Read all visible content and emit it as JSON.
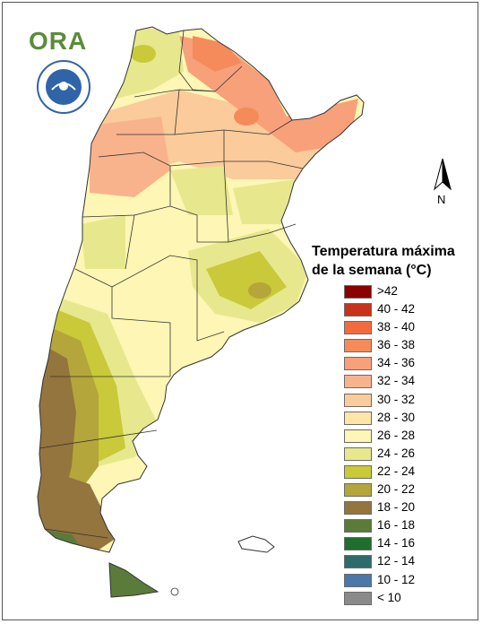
{
  "logo": {
    "text": "ORA",
    "brand_color": "#5a8c3a"
  },
  "seal": {
    "icon": "smn-seal-icon",
    "color": "#2f64a8"
  },
  "north_arrow": {
    "label": "N",
    "icon": "north-arrow-icon"
  },
  "legend": {
    "title_line1": "Temperatura máxima",
    "title_line2": "de la semana (°C)",
    "items": [
      {
        "label": ">42",
        "color": "#8b0000"
      },
      {
        "label": "40 - 42",
        "color": "#c8331b"
      },
      {
        "label": "38 - 40",
        "color": "#f26a3e"
      },
      {
        "label": "36 - 38",
        "color": "#f58a5a"
      },
      {
        "label": "34 - 36",
        "color": "#f7a07a"
      },
      {
        "label": "32 - 34",
        "color": "#f8b38d"
      },
      {
        "label": "30 - 32",
        "color": "#fbcb9b"
      },
      {
        "label": "28 - 30",
        "color": "#fde6a8"
      },
      {
        "label": "26 - 28",
        "color": "#fdf6b4"
      },
      {
        "label": "24 - 26",
        "color": "#e7e88d"
      },
      {
        "label": "22 - 24",
        "color": "#c9c93a"
      },
      {
        "label": "20 - 22",
        "color": "#b4a63a"
      },
      {
        "label": "18 - 20",
        "color": "#94753d"
      },
      {
        "label": "16 - 18",
        "color": "#5b7b3a"
      },
      {
        "label": "14 - 16",
        "color": "#1f6e2d"
      },
      {
        "label": "12 - 14",
        "color": "#2f6b6a"
      },
      {
        "label": "10 - 12",
        "color": "#4a78aa"
      },
      {
        "label": "< 10",
        "color": "#8a8a8a"
      }
    ]
  }
}
